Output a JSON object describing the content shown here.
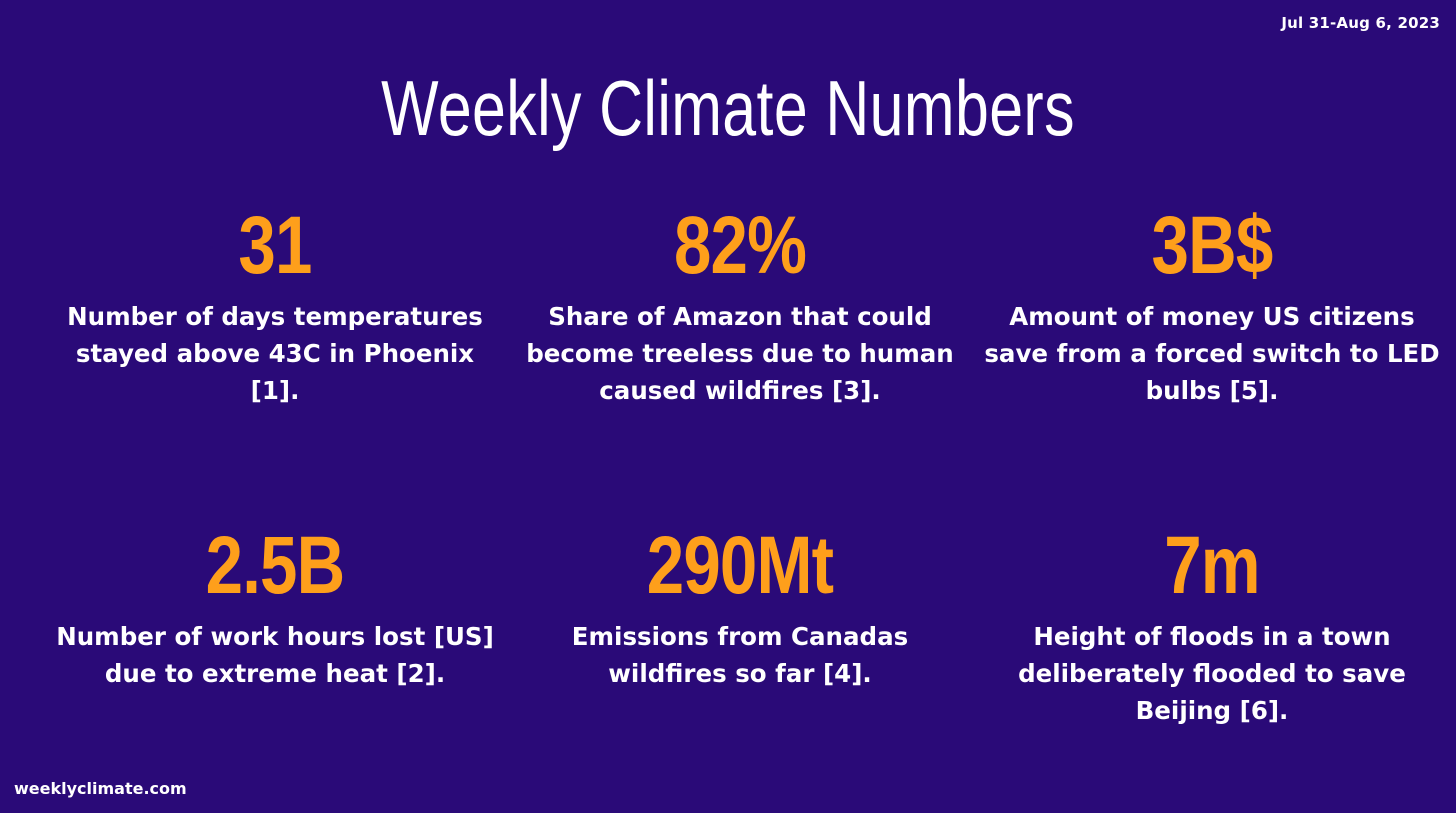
{
  "date_range": "Jul 31-Aug 6, 2023",
  "title": "Weekly Climate Numbers",
  "stats": [
    {
      "value": "31",
      "description": "Number of days temperatures stayed above 43C in Phoenix [1]."
    },
    {
      "value": "82%",
      "description": "Share of Amazon that could become treeless due to human caused wildfires [3]."
    },
    {
      "value": "3B$",
      "description": "Amount of money US citizens save from a forced switch to LED bulbs [5]."
    },
    {
      "value": "2.5B",
      "description": "Number of work hours lost [US] due to extreme heat [2]."
    },
    {
      "value": "290Mt",
      "description": "Emissions from Canadas wildfires so far [4]."
    },
    {
      "value": "7m",
      "description": "Height of floods in a town deliberately flooded to save Beijing [6]."
    }
  ],
  "footer": {
    "site": "weeklyclimate.com"
  },
  "colors": {
    "background": "#2a0a78",
    "accent": "#fe9f1b",
    "text": "#ffffff"
  }
}
